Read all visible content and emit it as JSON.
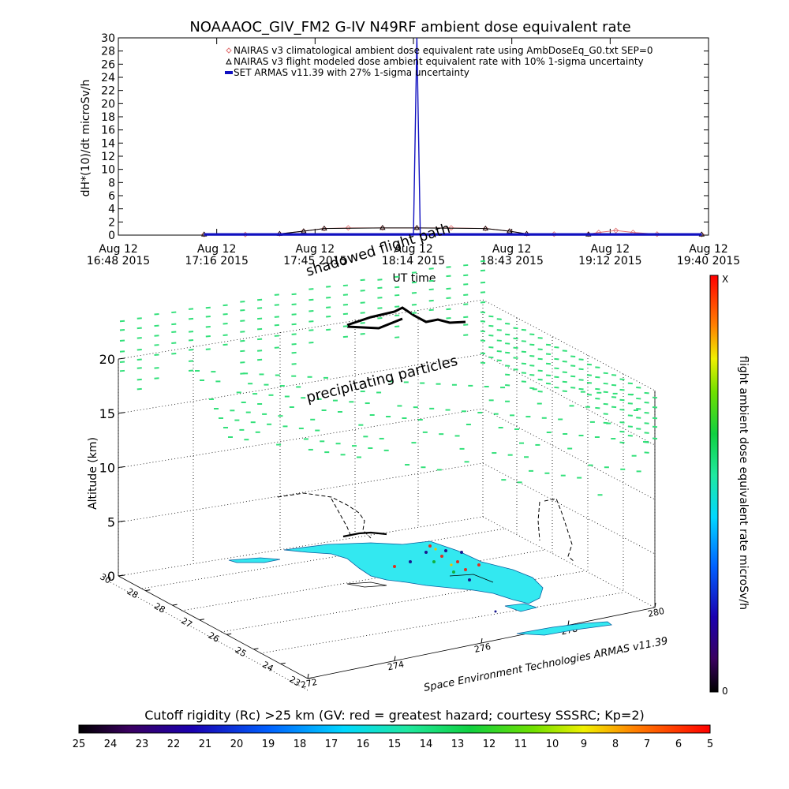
{
  "chart_data": [
    {
      "type": "line",
      "title": "NOAAAOC_GIV_FM2 G-IV   N49RF  ambient dose equivalent rate",
      "ylabel": "dH*(10)/dt microSv/h",
      "xlabel": "UT time",
      "ylim": [
        0,
        30
      ],
      "yticks": [
        0,
        2,
        4,
        6,
        8,
        10,
        12,
        14,
        16,
        18,
        20,
        22,
        24,
        26,
        28,
        30
      ],
      "xticks": [
        {
          "line1": "Aug 12",
          "line2": "16:48 2015"
        },
        {
          "line1": "Aug 12",
          "line2": "17:16 2015"
        },
        {
          "line1": "Aug 12",
          "line2": "17:45 2015"
        },
        {
          "line1": "Aug 12",
          "line2": "18:14 2015"
        },
        {
          "line1": "Aug 12",
          "line2": "18:43 2015"
        },
        {
          "line1": "Aug 12",
          "line2": "19:12 2015"
        },
        {
          "line1": "Aug 12",
          "line2": "19:40 2015"
        }
      ],
      "xlim": [
        "16:48",
        "19:40"
      ],
      "legend": [
        {
          "label": "NAIRAS v3 climatological ambient dose equivalent rate using AmbDoseEq_G0.txt SEP=0",
          "color": "#e07070",
          "marker": "diamond"
        },
        {
          "label": "NAIRAS v3 flight modeled dose ambient equivalent rate with 10% 1-sigma uncertainty",
          "color": "#000000",
          "marker": "triangle"
        },
        {
          "label": "SET ARMAS v11.39 with 27% 1-sigma uncertainty",
          "color": "#1010c0",
          "marker": "bar"
        }
      ],
      "series": [
        {
          "name": "NAIRAS v3 climatological ambient dose equivalent rate using AmbDoseEq_G0.txt SEP=0",
          "x": [
            "17:13",
            "17:25",
            "17:35",
            "17:42",
            "17:48",
            "17:55",
            "18:05",
            "18:15",
            "18:25",
            "18:35",
            "18:42",
            "18:47",
            "18:55",
            "19:05",
            "19:08",
            "19:13",
            "19:18",
            "19:25",
            "19:38"
          ],
          "values": [
            0.1,
            0.1,
            0.2,
            0.6,
            1.0,
            1.1,
            1.1,
            1.1,
            1.1,
            1.0,
            0.6,
            0.2,
            0.15,
            0.15,
            0.4,
            0.7,
            0.4,
            0.15,
            0.1
          ]
        },
        {
          "name": "NAIRAS v3 flight modeled dose ambient equivalent rate with 10% 1-sigma uncertainty",
          "x": [
            "17:13",
            "17:35",
            "17:42",
            "17:48",
            "18:05",
            "18:15",
            "18:35",
            "18:42",
            "18:47",
            "19:05",
            "19:38"
          ],
          "values": [
            0.1,
            0.2,
            0.6,
            1.0,
            1.1,
            1.1,
            1.0,
            0.6,
            0.2,
            0.1,
            0.1
          ]
        },
        {
          "name": "SET ARMAS v11.39 with 27% 1-sigma uncertainty",
          "x": [
            "17:13",
            "18:14",
            "18:15",
            "18:16",
            "19:38"
          ],
          "values": [
            0.0,
            0.0,
            30.0,
            0.0,
            0.0
          ]
        }
      ]
    },
    {
      "type": "scatter",
      "zlabel": "Altitude (km)",
      "zlim": [
        0,
        20
      ],
      "zticks": [
        0,
        5,
        10,
        15,
        20
      ],
      "lat_ticks": [
        "30",
        "28",
        "28",
        "27",
        "26",
        "25",
        "24",
        "23"
      ],
      "lon_ticks": [
        "272",
        "274",
        "276",
        "278",
        "280"
      ],
      "annotations": [
        "shadowed flight path",
        "precipitating particles"
      ],
      "credit": "Space Environment Technologies ARMAS v11.39",
      "colorbar_label": "flight ambient dose equivalent rate microSv/h",
      "colorbar_top": "X",
      "colorbar_bottom": "0"
    },
    {
      "type": "heatmap",
      "title": "Cutoff rigidity (Rc) >25 km (GV: red = greatest hazard; courtesy SSSRC; Kp=2)",
      "ticks": [
        "25",
        "24",
        "23",
        "22",
        "21",
        "20",
        "19",
        "18",
        "17",
        "16",
        "15",
        "14",
        "13",
        "12",
        "11",
        "10",
        "9",
        "8",
        "7",
        "6",
        "5"
      ]
    }
  ],
  "colors": {
    "nairas_clim": "#e07070",
    "nairas_flight": "#000000",
    "armas": "#1010c0",
    "land": "#33e8f0",
    "particles": "#33e07a"
  }
}
